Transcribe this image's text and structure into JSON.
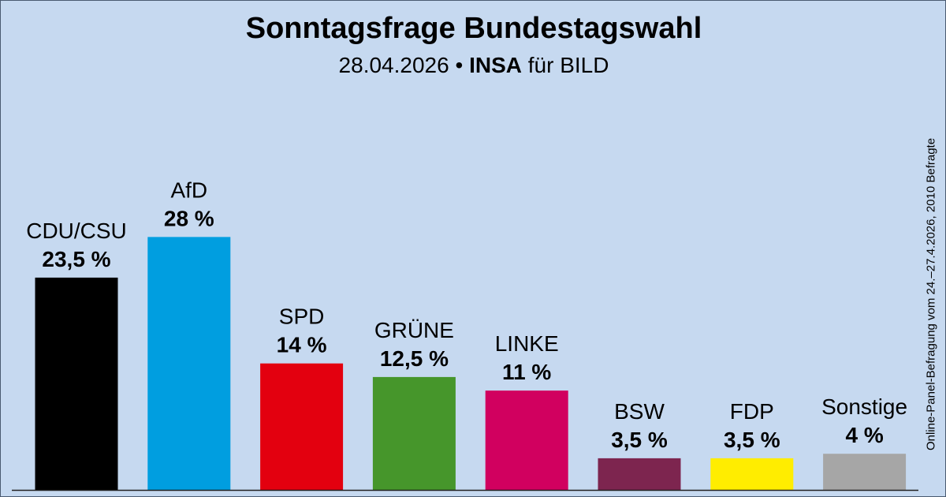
{
  "header": {
    "title": "Sonntagsfrage Bundestagswahl",
    "date": "28.04.2026",
    "separator": "•",
    "institute": "INSA",
    "client": "für BILD"
  },
  "side_note": "Online-Panel-Befragung vom 24.–27.4.2026, 2010 Befragte",
  "colors": {
    "background": "#c6d9f0",
    "baseline": "#222222"
  },
  "chart_data": {
    "type": "bar",
    "title": "Sonntagsfrage Bundestagswahl",
    "categories": [
      "CDU/CSU",
      "AfD",
      "SPD",
      "GRÜNE",
      "LINKE",
      "BSW",
      "FDP",
      "Sonstige"
    ],
    "values": [
      23.5,
      28,
      14,
      12.5,
      11,
      3.5,
      3.5,
      4
    ],
    "value_labels": [
      "23,5 %",
      "28 %",
      "14 %",
      "12,5 %",
      "11 %",
      "3,5 %",
      "3,5 %",
      "4 %"
    ],
    "colors": [
      "#000000",
      "#009ee0",
      "#e3000f",
      "#46962b",
      "#d1005f",
      "#7d254f",
      "#ffed00",
      "#a6a6a6"
    ],
    "unit": "%",
    "grid": false,
    "legend": "none"
  }
}
